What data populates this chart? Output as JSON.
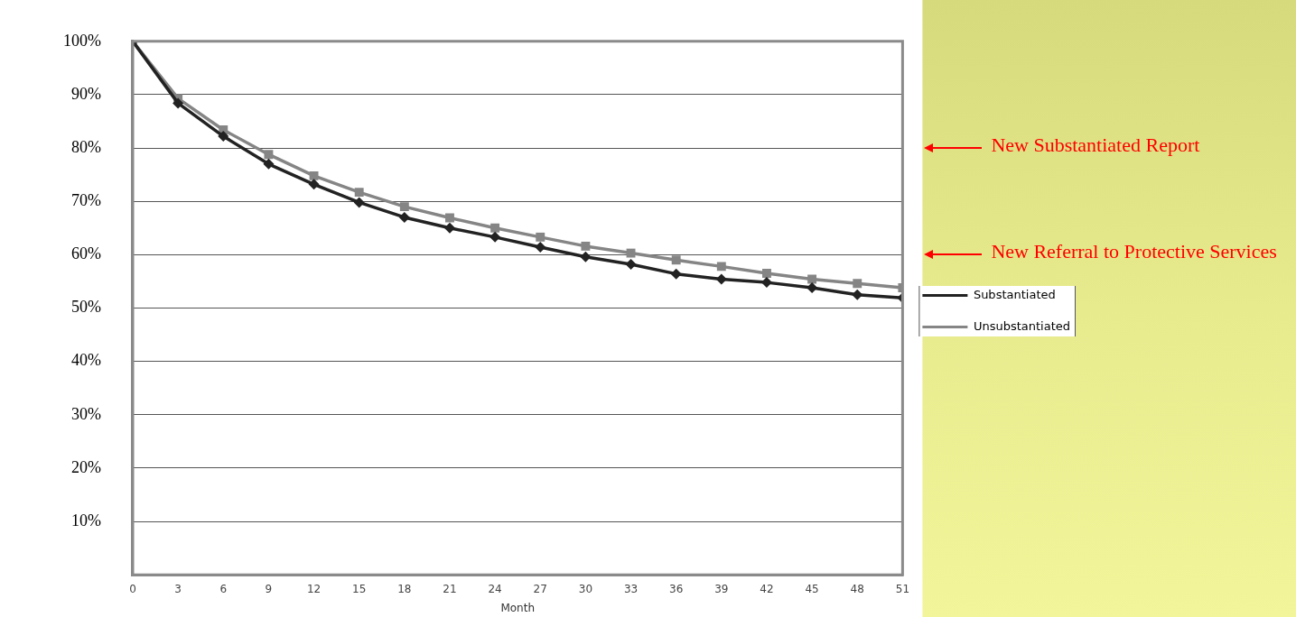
{
  "chart_data": {
    "type": "line",
    "xlabel": "Month",
    "x": [
      0,
      3,
      6,
      9,
      12,
      15,
      18,
      21,
      24,
      27,
      30,
      33,
      36,
      39,
      42,
      45,
      48,
      51
    ],
    "series": [
      {
        "name": "Substantiated",
        "color": "#222222",
        "marker": "diamond",
        "values": [
          100,
          88.4,
          82.2,
          77,
          73.2,
          69.8,
          67,
          65,
          63.3,
          61.4,
          59.6,
          58.2,
          56.4,
          55.4,
          54.8,
          53.8,
          52.5,
          51.9
        ]
      },
      {
        "name": "Unsubstantiated",
        "color": "#858585",
        "marker": "square",
        "values": [
          100,
          89.3,
          83.4,
          78.8,
          74.8,
          71.7,
          69,
          66.9,
          65,
          63.3,
          61.6,
          60.3,
          59,
          57.8,
          56.5,
          55.4,
          54.6,
          53.8
        ]
      }
    ],
    "xlim": [
      0,
      51
    ],
    "xticks": [
      0,
      3,
      6,
      9,
      12,
      15,
      18,
      21,
      24,
      27,
      30,
      33,
      36,
      39,
      42,
      45,
      48,
      51
    ],
    "ylim": [
      0,
      100
    ],
    "yticks": [
      {
        "value": 0,
        "label": null
      },
      {
        "value": 10,
        "label": "10%"
      },
      {
        "value": 20,
        "label": "20%"
      },
      {
        "value": 30,
        "label": "30%"
      },
      {
        "value": 40,
        "label": "40%"
      },
      {
        "value": 50,
        "label": "50%"
      },
      {
        "value": 60,
        "label": "60%"
      },
      {
        "value": 70,
        "label": "70%"
      },
      {
        "value": 80,
        "label": "80%"
      },
      {
        "value": 90,
        "label": "90%"
      },
      {
        "value": 100,
        "label": "100%"
      }
    ],
    "grid": "y",
    "legend": "right",
    "annotations": [
      "New Substantiated Report",
      "New Referral to Protective Services"
    ]
  }
}
